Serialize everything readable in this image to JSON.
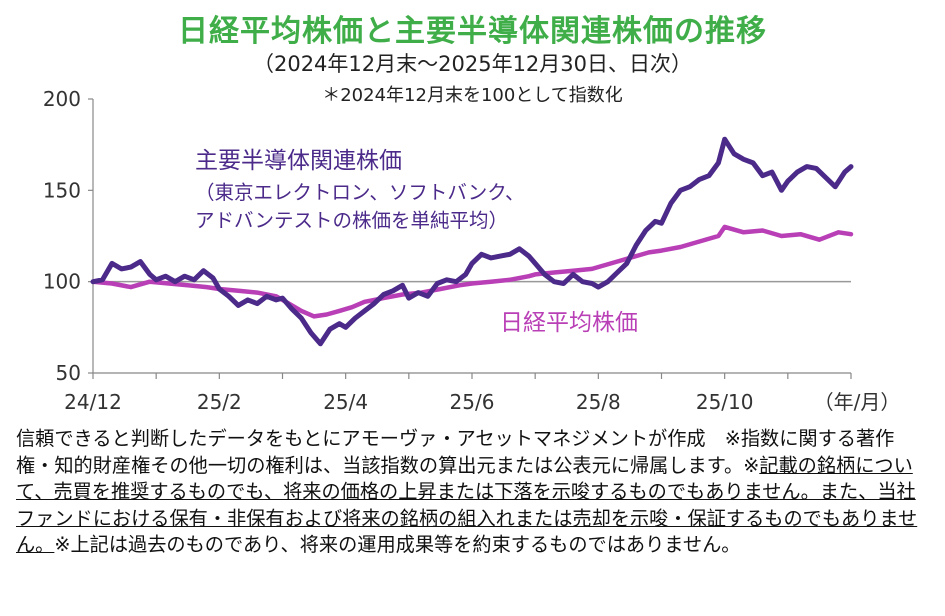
{
  "chart_data": {
    "type": "line",
    "title": "日経平均株価と主要半導体関連株価の推移",
    "subtitle": "（2024年12月末～2025年12月30日、日次）",
    "note": "＊2024年12月末を100として指数化",
    "x_tick_labels": [
      "24/12",
      "25/2",
      "25/4",
      "25/6",
      "25/8",
      "25/10"
    ],
    "x_unit_label": "（年/月）",
    "x_range": [
      0,
      12
    ],
    "ylim": [
      50,
      200
    ],
    "y_ticks": [
      50,
      100,
      150,
      200
    ],
    "baseline": 100,
    "series": [
      {
        "name": "主要半導体関連株価",
        "legend_lines": [
          "主要半導体関連株価",
          "（東京エレクトロン、ソフトバンク、",
          "アドバンテストの株価を単純平均）"
        ],
        "color": "#4b2a8a",
        "x": [
          0,
          0.15,
          0.3,
          0.45,
          0.6,
          0.75,
          0.9,
          1.0,
          1.15,
          1.3,
          1.45,
          1.6,
          1.75,
          1.9,
          2.0,
          2.15,
          2.3,
          2.45,
          2.6,
          2.75,
          2.9,
          3.0,
          3.15,
          3.3,
          3.45,
          3.6,
          3.75,
          3.9,
          4.0,
          4.15,
          4.3,
          4.45,
          4.6,
          4.75,
          4.9,
          5.0,
          5.15,
          5.3,
          5.45,
          5.6,
          5.75,
          5.9,
          6.0,
          6.15,
          6.3,
          6.45,
          6.6,
          6.75,
          6.9,
          7.0,
          7.15,
          7.3,
          7.45,
          7.6,
          7.75,
          7.9,
          8.0,
          8.15,
          8.3,
          8.45,
          8.6,
          8.75,
          8.9,
          9.0,
          9.15,
          9.3,
          9.45,
          9.6,
          9.75,
          9.9,
          10.0,
          10.15,
          10.3,
          10.45,
          10.6,
          10.75,
          10.9,
          11.0,
          11.15,
          11.3,
          11.45,
          11.6,
          11.75,
          11.9,
          12.0
        ],
        "values": [
          100,
          101,
          110,
          107,
          108,
          111,
          104,
          101,
          103,
          100,
          103,
          101,
          106,
          102,
          96,
          92,
          87,
          90,
          88,
          92,
          90,
          91,
          85,
          80,
          72,
          66,
          74,
          77,
          75,
          80,
          84,
          88,
          93,
          95,
          98,
          91,
          94,
          92,
          99,
          101,
          100,
          104,
          110,
          115,
          113,
          114,
          115,
          118,
          114,
          110,
          104,
          100,
          99,
          104,
          100,
          99,
          97,
          100,
          105,
          110,
          120,
          128,
          133,
          132,
          143,
          150,
          152,
          156,
          158,
          165,
          178,
          170,
          167,
          165,
          158,
          160,
          150,
          155,
          160,
          163,
          162,
          157,
          152,
          160,
          163
        ]
      },
      {
        "name": "日経平均株価",
        "legend_lines": [
          "日経平均株価"
        ],
        "color": "#b93fb6",
        "x": [
          0,
          0.3,
          0.6,
          0.9,
          1.2,
          1.5,
          1.8,
          2.0,
          2.3,
          2.6,
          2.9,
          3.1,
          3.3,
          3.5,
          3.7,
          3.9,
          4.1,
          4.3,
          4.6,
          4.9,
          5.2,
          5.5,
          5.8,
          6.0,
          6.3,
          6.6,
          6.9,
          7.0,
          7.3,
          7.6,
          7.9,
          8.2,
          8.5,
          8.8,
          9.0,
          9.3,
          9.6,
          9.9,
          10.0,
          10.3,
          10.6,
          10.9,
          11.2,
          11.5,
          11.8,
          12.0
        ],
        "values": [
          100,
          99,
          97,
          100,
          99,
          98,
          97,
          96,
          95,
          94,
          92,
          88,
          84,
          81,
          82,
          84,
          86,
          89,
          91,
          93,
          94,
          96,
          98,
          99,
          100,
          101,
          103,
          104,
          105,
          106,
          107,
          110,
          113,
          116,
          117,
          119,
          122,
          125,
          130,
          127,
          128,
          125,
          126,
          123,
          127,
          126
        ]
      }
    ]
  },
  "disclaimer": {
    "part1": "信頼できると判断したデータをもとにアモーヴァ・アセットマネジメントが作成　※指数に関する著作権・知的財産権その他一切の権利は、当該指数の算出元または公表元に帰属します。※",
    "underlined": "記載の銘柄について、売買を推奨するものでも、将来の価格の上昇または下落を示唆するものでもありません。また、当社ファンドにおける保有・非保有および将来の銘柄の組入れまたは売却を示唆・保証するものでもありません。",
    "part2": "※上記は過去のものであり、将来の運用成果等を約束するものではありません。"
  }
}
